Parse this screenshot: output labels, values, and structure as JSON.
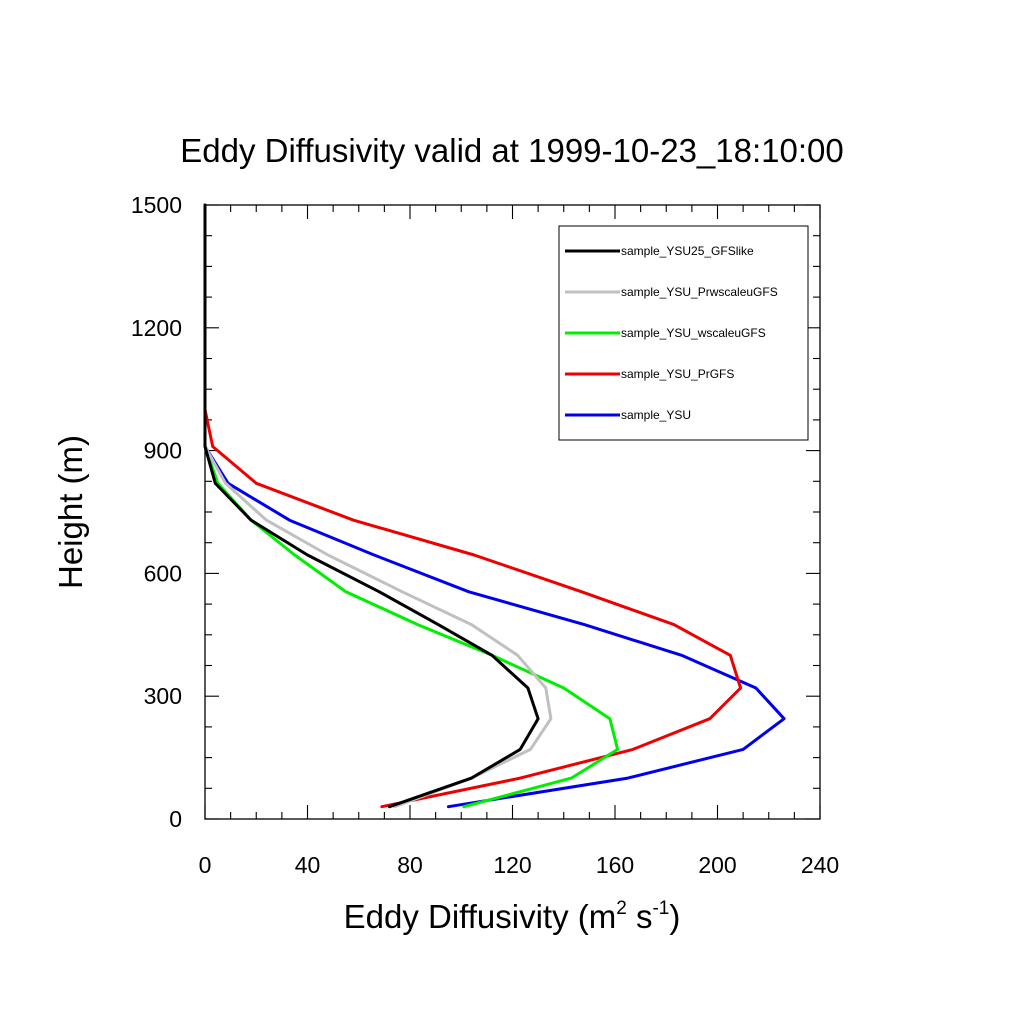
{
  "chart_data": {
    "type": "line",
    "title": "Eddy Diffusivity valid at 1999-10-23_18:10:00",
    "xlabel": "Eddy Diffusivity (m",
    "xlabel_sup1": "2",
    "xlabel_mid": " s",
    "xlabel_sup2": "-1",
    "xlabel_end": ")",
    "ylabel": "Height (m)",
    "xlim": [
      0,
      240
    ],
    "ylim": [
      0,
      1500
    ],
    "xticks": [
      0,
      40,
      80,
      120,
      160,
      200,
      240
    ],
    "yticks": [
      0,
      300,
      600,
      900,
      1200,
      1500
    ],
    "xtick_labels": [
      "0",
      "40",
      "80",
      "120",
      "160",
      "200",
      "240"
    ],
    "ytick_labels": [
      "0",
      "300",
      "600",
      "900",
      "1200",
      "1500"
    ],
    "legend_position": "top-right",
    "grid": false,
    "series": [
      {
        "name": "sample_YSU25_GFSlike",
        "color": "#000000",
        "points": [
          [
            72,
            30
          ],
          [
            104,
            100
          ],
          [
            123,
            170
          ],
          [
            130,
            245
          ],
          [
            126,
            320
          ],
          [
            112,
            400
          ],
          [
            91,
            475
          ],
          [
            68,
            555
          ],
          [
            40,
            645
          ],
          [
            18,
            730
          ],
          [
            4,
            820
          ],
          [
            0,
            910
          ],
          [
            0,
            1000
          ],
          [
            0,
            1100
          ],
          [
            0,
            1200
          ],
          [
            0,
            1300
          ],
          [
            0,
            1400
          ],
          [
            0,
            1500
          ]
        ]
      },
      {
        "name": "sample_YSU_PrwscaleuGFS",
        "color": "#c0c0c0",
        "points": [
          [
            74,
            30
          ],
          [
            104,
            100
          ],
          [
            127,
            170
          ],
          [
            135,
            245
          ],
          [
            133,
            320
          ],
          [
            122,
            400
          ],
          [
            104,
            475
          ],
          [
            77,
            555
          ],
          [
            48,
            645
          ],
          [
            24,
            730
          ],
          [
            8,
            820
          ],
          [
            0,
            910
          ],
          [
            0,
            1000
          ],
          [
            0,
            1100
          ],
          [
            0,
            1200
          ],
          [
            0,
            1300
          ],
          [
            0,
            1400
          ],
          [
            0,
            1500
          ]
        ]
      },
      {
        "name": "sample_YSU_wscaleuGFS",
        "color": "#00ee00",
        "points": [
          [
            101,
            30
          ],
          [
            143,
            100
          ],
          [
            161,
            170
          ],
          [
            158,
            245
          ],
          [
            140,
            320
          ],
          [
            112,
            400
          ],
          [
            83,
            475
          ],
          [
            55,
            555
          ],
          [
            35,
            645
          ],
          [
            18,
            730
          ],
          [
            5,
            820
          ],
          [
            0,
            910
          ],
          [
            0,
            1000
          ],
          [
            0,
            1100
          ],
          [
            0,
            1200
          ],
          [
            0,
            1300
          ],
          [
            0,
            1400
          ],
          [
            0,
            1500
          ]
        ]
      },
      {
        "name": "sample_YSU_PrGFS",
        "color": "#ee0000",
        "points": [
          [
            69,
            30
          ],
          [
            123,
            100
          ],
          [
            167,
            170
          ],
          [
            197,
            245
          ],
          [
            209,
            320
          ],
          [
            205,
            400
          ],
          [
            183,
            475
          ],
          [
            147,
            555
          ],
          [
            105,
            645
          ],
          [
            58,
            730
          ],
          [
            20,
            820
          ],
          [
            3,
            910
          ],
          [
            0,
            1000
          ],
          [
            0,
            1100
          ],
          [
            0,
            1200
          ],
          [
            0,
            1300
          ],
          [
            0,
            1400
          ],
          [
            0,
            1500
          ]
        ]
      },
      {
        "name": "sample_YSU",
        "color": "#0000ee",
        "points": [
          [
            95,
            30
          ],
          [
            165,
            100
          ],
          [
            210,
            170
          ],
          [
            226,
            245
          ],
          [
            215,
            320
          ],
          [
            186,
            400
          ],
          [
            148,
            475
          ],
          [
            103,
            555
          ],
          [
            66,
            645
          ],
          [
            33,
            730
          ],
          [
            9,
            820
          ],
          [
            0,
            910
          ],
          [
            0,
            1000
          ],
          [
            0,
            1100
          ],
          [
            0,
            1200
          ],
          [
            0,
            1300
          ],
          [
            0,
            1400
          ],
          [
            0,
            1500
          ]
        ]
      }
    ]
  }
}
